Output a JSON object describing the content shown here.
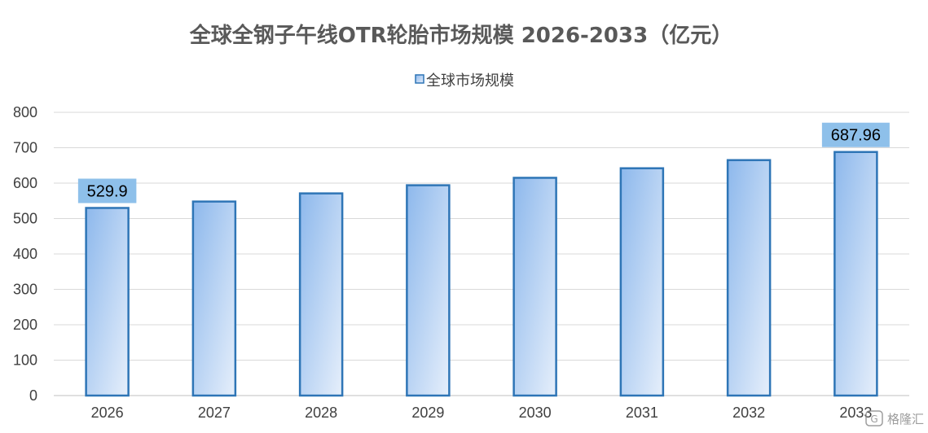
{
  "chart_data": {
    "type": "bar",
    "title": "全球全钢子午线OTR轮胎市场规模 2026-2033（亿元）",
    "legend": {
      "entries": [
        "全球市场规模"
      ],
      "placement": "top-center"
    },
    "categories": [
      "2026",
      "2027",
      "2028",
      "2029",
      "2030",
      "2031",
      "2032",
      "2033"
    ],
    "series": [
      {
        "name": "全球市场规模",
        "values": [
          529.9,
          548,
          571,
          594,
          615,
          642,
          665,
          687.96
        ]
      }
    ],
    "data_labels": [
      {
        "category": "2026",
        "text": "529.9"
      },
      {
        "category": "2033",
        "text": "687.96"
      }
    ],
    "ylim": [
      0,
      800
    ],
    "yticks": [
      "0",
      "100",
      "200",
      "300",
      "400",
      "500",
      "600",
      "700",
      "800"
    ],
    "xlabel": "",
    "ylabel": "",
    "grid": true,
    "colors": {
      "bar_fill_start": "#8db8ec",
      "bar_fill_end": "#e6effb",
      "bar_border": "#2e75b6",
      "label_bg": "#8ec0ea",
      "grid": "#d9d9d9",
      "axis": "#bfbfbf"
    }
  },
  "watermark": {
    "icon": "gelonghui-logo-icon",
    "text": "格隆汇"
  }
}
